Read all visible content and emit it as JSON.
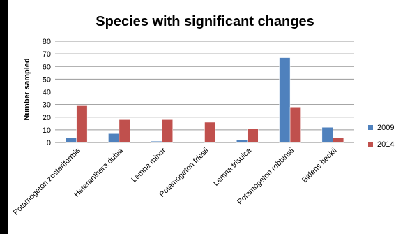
{
  "chart_data": {
    "type": "bar",
    "title": "Species with significant changes",
    "xlabel": "",
    "ylabel": "Number sampled",
    "ylim": [
      0,
      80
    ],
    "yticks": [
      0,
      10,
      20,
      30,
      40,
      50,
      60,
      70,
      80
    ],
    "grid": true,
    "legend_position": "right",
    "categories": [
      "Potamogeton zosteriformis",
      "Heteranthera dubia",
      "Lemna minor",
      "Potamogeton friesii",
      "Lemna trisulca",
      "Potamogeton robbinsii",
      "Bidens beckii"
    ],
    "series": [
      {
        "name": "2009",
        "color": "#4f81bd",
        "values": [
          4,
          7,
          1,
          0,
          2,
          67,
          12
        ]
      },
      {
        "name": "2014",
        "color": "#c0504d",
        "values": [
          29,
          18,
          18,
          16,
          11,
          28,
          4
        ]
      }
    ]
  }
}
